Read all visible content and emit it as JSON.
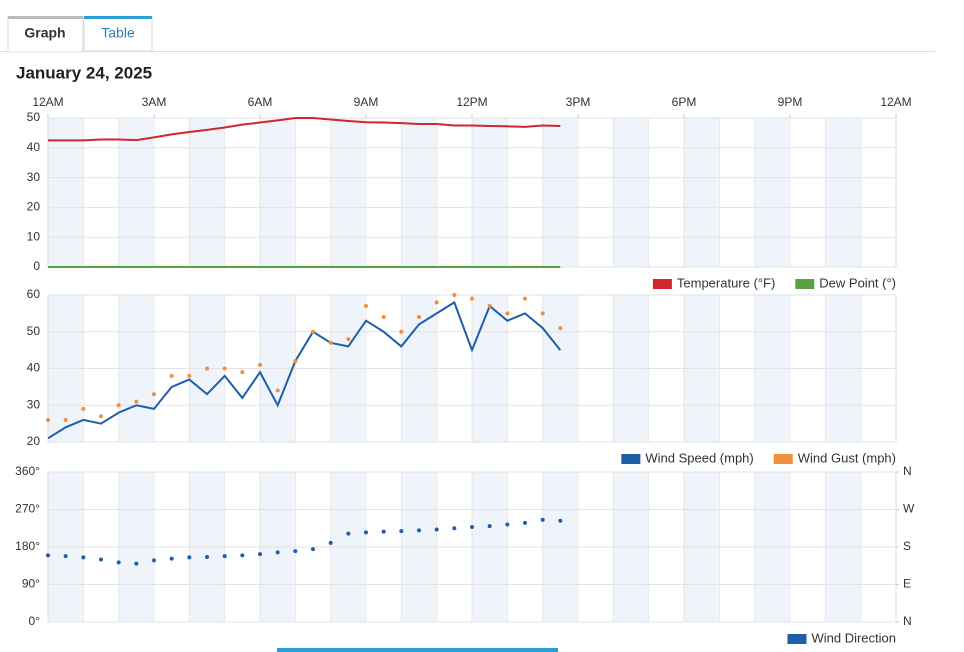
{
  "tabs": [
    "Graph",
    "Table"
  ],
  "date": "January 24, 2025",
  "chart_data": [
    {
      "type": "line",
      "x": [
        0,
        0.5,
        1,
        1.5,
        2,
        2.5,
        3,
        3.5,
        4,
        4.5,
        5,
        5.5,
        6,
        6.5,
        7,
        7.5,
        8,
        8.5,
        9,
        9.5,
        10,
        10.5,
        11,
        11.5,
        12,
        12.5,
        13,
        13.5,
        14,
        14.5
      ],
      "xlim": [
        0,
        24
      ],
      "xticks": [
        {
          "value": 0,
          "label": "12AM"
        },
        {
          "value": 3,
          "label": "3AM"
        },
        {
          "value": 6,
          "label": "6AM"
        },
        {
          "value": 9,
          "label": "9AM"
        },
        {
          "value": 12,
          "label": "12PM"
        },
        {
          "value": 15,
          "label": "3PM"
        },
        {
          "value": 18,
          "label": "6PM"
        },
        {
          "value": 21,
          "label": "9PM"
        },
        {
          "value": 24,
          "label": "12AM"
        }
      ],
      "ylim": [
        0,
        50
      ],
      "yticks": [
        0,
        10,
        20,
        30,
        40,
        50
      ],
      "grid": true,
      "legend": "bottom-right",
      "series": [
        {
          "name": "Temperature (°F)",
          "color": "#d0262f",
          "style": "line",
          "values": [
            42.5,
            42.5,
            42.5,
            42.8,
            42.8,
            42.6,
            43.5,
            44.5,
            45.3,
            46,
            46.8,
            47.8,
            48.5,
            49.2,
            50,
            50,
            49.5,
            49,
            48.6,
            48.5,
            48.3,
            48,
            48,
            47.5,
            47.5,
            47.3,
            47.2,
            47,
            47.5,
            47.3
          ]
        },
        {
          "name": "Dew Point (°)",
          "color": "#5ba044",
          "style": "line",
          "values": [
            0,
            0,
            0,
            0,
            0,
            0,
            0,
            0,
            0,
            0,
            0,
            0,
            0,
            0,
            0,
            0,
            0,
            0,
            0,
            0,
            0,
            0,
            0,
            0,
            0,
            0,
            0,
            0,
            0,
            0
          ]
        }
      ]
    },
    {
      "type": "line",
      "x": [
        0,
        0.5,
        1,
        1.5,
        2,
        2.5,
        3,
        3.5,
        4,
        4.5,
        5,
        5.5,
        6,
        6.5,
        7,
        7.5,
        8,
        8.5,
        9,
        9.5,
        10,
        10.5,
        11,
        11.5,
        12,
        12.5,
        13,
        13.5,
        14,
        14.5
      ],
      "xlim": [
        0,
        24
      ],
      "ylim": [
        20,
        60
      ],
      "yticks": [
        20,
        30,
        40,
        50,
        60
      ],
      "grid": true,
      "legend": "bottom-right",
      "series": [
        {
          "name": "Wind Speed (mph)",
          "color": "#1f5ea8",
          "style": "line",
          "values": [
            21,
            24,
            26,
            25,
            28,
            30,
            29,
            35,
            37,
            33,
            38,
            32,
            39,
            30,
            42,
            50,
            47,
            46,
            53,
            50,
            46,
            52,
            55,
            58,
            45,
            57,
            53,
            55,
            51,
            45
          ]
        },
        {
          "name": "Wind Gust (mph)",
          "color": "#f28e3c",
          "style": "dots",
          "values": [
            26,
            26,
            29,
            27,
            30,
            31,
            33,
            38,
            38,
            40,
            40,
            39,
            41,
            34,
            42,
            50,
            47,
            48,
            57,
            54,
            50,
            54,
            58,
            60,
            59,
            57,
            55,
            59,
            55,
            51
          ]
        }
      ]
    },
    {
      "type": "scatter",
      "x": [
        0,
        0.5,
        1,
        1.5,
        2,
        2.5,
        3,
        3.5,
        4,
        4.5,
        5,
        5.5,
        6,
        6.5,
        7,
        7.5,
        8,
        8.5,
        9,
        9.5,
        10,
        10.5,
        11,
        11.5,
        12,
        12.5,
        13,
        13.5,
        14,
        14.5
      ],
      "xlim": [
        0,
        24
      ],
      "ylim": [
        0,
        360
      ],
      "yticks": [
        {
          "value": 0,
          "label": "0°"
        },
        {
          "value": 90,
          "label": "90°"
        },
        {
          "value": 180,
          "label": "180°"
        },
        {
          "value": 270,
          "label": "270°"
        },
        {
          "value": 360,
          "label": "360°"
        }
      ],
      "y2lim": [
        0,
        360
      ],
      "y2ticks": [
        {
          "value": 0,
          "label": "N"
        },
        {
          "value": 90,
          "label": "E"
        },
        {
          "value": 180,
          "label": "S"
        },
        {
          "value": 270,
          "label": "W"
        },
        {
          "value": 360,
          "label": "N"
        }
      ],
      "grid": true,
      "legend": "bottom-right",
      "series": [
        {
          "name": "Wind Direction",
          "color": "#1f5ea8",
          "style": "dots",
          "values": [
            160,
            158,
            155,
            150,
            143,
            140,
            148,
            152,
            155,
            156,
            158,
            160,
            163,
            167,
            170,
            175,
            190,
            212,
            215,
            217,
            218,
            220,
            222,
            225,
            228,
            230,
            234,
            238,
            245,
            243
          ]
        }
      ]
    }
  ]
}
